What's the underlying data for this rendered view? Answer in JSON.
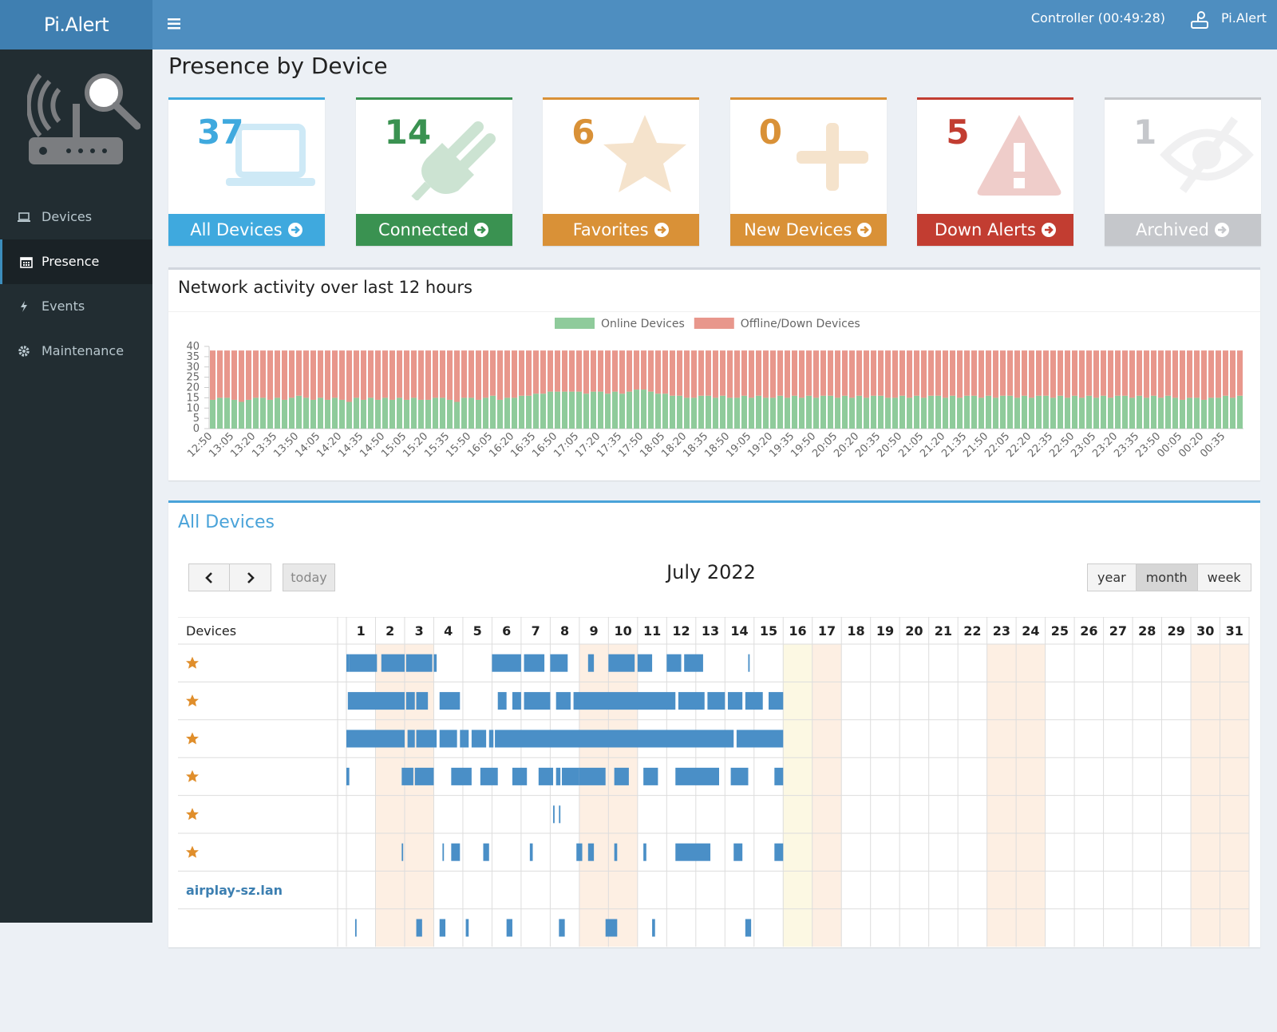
{
  "header": {
    "logo": "Pi.Alert",
    "status": "Controller (00:49:28)",
    "user": "Pi.Alert"
  },
  "sidebar": {
    "items": [
      "Devices",
      "Presence",
      "Events",
      "Maintenance"
    ],
    "active": 1
  },
  "page_title": "Presence by Device",
  "tiles": [
    {
      "count": 37,
      "label": "All Devices",
      "color": "#3fa9de"
    },
    {
      "count": 14,
      "label": "Connected",
      "color": "#3a9251"
    },
    {
      "count": 6,
      "label": "Favorites",
      "color": "#d99137"
    },
    {
      "count": 0,
      "label": "New Devices",
      "color": "#d99137"
    },
    {
      "count": 5,
      "label": "Down Alerts",
      "color": "#c23d31"
    },
    {
      "count": 1,
      "label": "Archived",
      "color": "#c5c7cb"
    }
  ],
  "chart_data": {
    "type": "stacked_bar",
    "title": "Network activity over last 12 hours",
    "categories": [
      "12:50",
      null,
      null,
      "13:05",
      null,
      null,
      "13:20",
      null,
      null,
      "13:35",
      null,
      null,
      "13:50",
      null,
      null,
      "14:05",
      null,
      null,
      "14:20",
      null,
      null,
      "14:35",
      null,
      null,
      "14:50",
      null,
      null,
      "15:05",
      null,
      null,
      "15:20",
      null,
      null,
      "15:35",
      null,
      null,
      "15:50",
      null,
      null,
      "16:05",
      null,
      null,
      "16:20",
      null,
      null,
      "16:35",
      null,
      null,
      "16:50",
      null,
      null,
      "17:05",
      null,
      null,
      "17:20",
      null,
      null,
      "17:35",
      null,
      null,
      "17:50",
      null,
      null,
      "18:05",
      null,
      null,
      "18:20",
      null,
      null,
      "18:35",
      null,
      null,
      "18:50",
      null,
      null,
      "19:05",
      null,
      null,
      "19:20",
      null,
      null,
      "19:35",
      null,
      null,
      "19:50",
      null,
      null,
      "20:05",
      null,
      null,
      "20:20",
      null,
      null,
      "20:35",
      null,
      null,
      "20:50",
      null,
      null,
      "21:05",
      null,
      null,
      "21:20",
      null,
      null,
      "21:35",
      null,
      null,
      "21:50",
      null,
      null,
      "22:05",
      null,
      null,
      "22:20",
      null,
      null,
      "22:35",
      null,
      null,
      "22:50",
      null,
      null,
      "23:05",
      null,
      null,
      "23:20",
      null,
      null,
      "23:35",
      null,
      null,
      "23:50",
      null,
      null,
      "00:05",
      null,
      null,
      "00:20",
      null,
      null,
      "00:35",
      null,
      null
    ],
    "series": [
      {
        "name": "Online Devices",
        "color": "#8fcb9b",
        "values": [
          14,
          15,
          15,
          14,
          13,
          14,
          15,
          15,
          14,
          15,
          14,
          15,
          16,
          15,
          14,
          15,
          14,
          15,
          14,
          13,
          15,
          14,
          15,
          14,
          15,
          14,
          15,
          14,
          15,
          14,
          14,
          15,
          15,
          14,
          13,
          15,
          15,
          14,
          15,
          16,
          14,
          15,
          15,
          16,
          16,
          17,
          17,
          18,
          18,
          18,
          18,
          18,
          17,
          18,
          18,
          17,
          18,
          17,
          18,
          19,
          19,
          18,
          17,
          17,
          16,
          16,
          15,
          15,
          16,
          16,
          15,
          16,
          15,
          15,
          16,
          15,
          16,
          15,
          15,
          16,
          15,
          16,
          15,
          16,
          15,
          16,
          16,
          15,
          16,
          15,
          16,
          15,
          16,
          16,
          15,
          15,
          16,
          15,
          16,
          15,
          16,
          16,
          15,
          16,
          15,
          16,
          16,
          15,
          16,
          15,
          16,
          16,
          15,
          16,
          15,
          16,
          16,
          15,
          16,
          15,
          16,
          15,
          16,
          15,
          16,
          15,
          16,
          16,
          15,
          16,
          15,
          16,
          15,
          16,
          15,
          14,
          15,
          15,
          14,
          15,
          15,
          16,
          15,
          16
        ]
      },
      {
        "name": "Offline/Down Devices",
        "color": "#e8978c",
        "values": [
          24,
          23,
          23,
          24,
          25,
          24,
          23,
          23,
          24,
          23,
          24,
          23,
          22,
          23,
          24,
          23,
          24,
          23,
          24,
          25,
          23,
          24,
          23,
          24,
          23,
          24,
          23,
          24,
          23,
          24,
          24,
          23,
          23,
          24,
          25,
          23,
          23,
          24,
          23,
          22,
          24,
          23,
          23,
          22,
          22,
          21,
          21,
          20,
          20,
          20,
          20,
          20,
          21,
          20,
          20,
          21,
          20,
          21,
          20,
          19,
          19,
          20,
          21,
          21,
          22,
          22,
          23,
          23,
          22,
          22,
          23,
          22,
          23,
          23,
          22,
          23,
          22,
          23,
          23,
          22,
          23,
          22,
          23,
          22,
          23,
          22,
          22,
          23,
          22,
          23,
          22,
          23,
          22,
          22,
          23,
          23,
          22,
          23,
          22,
          23,
          22,
          22,
          23,
          22,
          23,
          22,
          22,
          23,
          22,
          23,
          22,
          22,
          23,
          22,
          23,
          22,
          22,
          23,
          22,
          23,
          22,
          23,
          22,
          23,
          22,
          23,
          22,
          22,
          23,
          22,
          23,
          22,
          23,
          22,
          23,
          24,
          23,
          23,
          24,
          23,
          23,
          22,
          23,
          22
        ]
      }
    ],
    "ylim": [
      0,
      40
    ],
    "yticks": [
      0,
      5,
      10,
      15,
      20,
      25,
      30,
      35,
      40
    ],
    "legend": "top",
    "grid": false
  },
  "calendar": {
    "title": "All Devices",
    "month": "July 2022",
    "today_button": "today",
    "views": [
      "year",
      "month",
      "week"
    ],
    "active_view": 1,
    "devices_header": "Devices",
    "days": [
      1,
      2,
      3,
      4,
      5,
      6,
      7,
      8,
      9,
      10,
      11,
      12,
      13,
      14,
      15,
      16,
      17,
      18,
      19,
      20,
      21,
      22,
      23,
      24,
      25,
      26,
      27,
      28,
      29,
      30,
      31
    ],
    "rows": [
      {
        "favorite": true,
        "presence": [
          [
            1.0,
            1.1
          ],
          [
            1.1,
            2.05
          ],
          [
            2.2,
            3.0
          ],
          [
            3.05,
            3.95
          ],
          [
            4.0,
            4.1
          ],
          [
            6.0,
            7.0
          ],
          [
            7.1,
            7.8
          ],
          [
            8.0,
            8.6
          ],
          [
            9.3,
            9.5
          ],
          [
            10.0,
            10.9
          ],
          [
            11.0,
            11.5
          ],
          [
            12.0,
            12.5
          ],
          [
            12.6,
            13.25
          ],
          [
            14.8,
            14.85
          ]
        ]
      },
      {
        "favorite": true,
        "presence": [
          [
            1.05,
            3.0
          ],
          [
            3.05,
            3.35
          ],
          [
            3.4,
            3.8
          ],
          [
            4.2,
            4.9
          ],
          [
            6.2,
            6.5
          ],
          [
            6.7,
            7.0
          ],
          [
            7.1,
            8.0
          ],
          [
            8.2,
            8.7
          ],
          [
            8.8,
            12.3
          ],
          [
            12.4,
            13.3
          ],
          [
            13.4,
            14.0
          ],
          [
            14.1,
            14.6
          ],
          [
            14.7,
            15.3
          ],
          [
            15.5,
            16.0
          ]
        ]
      },
      {
        "favorite": true,
        "presence": [
          [
            1.0,
            3.0
          ],
          [
            3.1,
            3.35
          ],
          [
            3.4,
            4.1
          ],
          [
            4.2,
            4.8
          ],
          [
            4.9,
            5.2
          ],
          [
            5.3,
            5.8
          ],
          [
            5.9,
            6.05
          ],
          [
            6.1,
            14.3
          ],
          [
            14.4,
            16.0
          ]
        ]
      },
      {
        "favorite": true,
        "presence": [
          [
            1.0,
            1.1
          ],
          [
            2.9,
            3.3
          ],
          [
            3.35,
            4.0
          ],
          [
            4.6,
            5.3
          ],
          [
            5.6,
            6.2
          ],
          [
            6.7,
            7.2
          ],
          [
            7.6,
            8.1
          ],
          [
            8.2,
            8.35
          ],
          [
            8.4,
            9.0
          ],
          [
            9.0,
            9.9
          ],
          [
            10.2,
            10.7
          ],
          [
            11.2,
            11.7
          ],
          [
            12.3,
            13.8
          ],
          [
            14.2,
            14.8
          ],
          [
            15.7,
            16.0
          ]
        ]
      },
      {
        "favorite": true,
        "presence": [
          [
            8.1,
            8.15
          ],
          [
            8.3,
            8.35
          ]
        ]
      },
      {
        "favorite": true,
        "presence": [
          [
            2.9,
            2.95
          ],
          [
            4.3,
            4.35
          ],
          [
            4.6,
            4.9
          ],
          [
            5.7,
            5.9
          ],
          [
            7.3,
            7.4
          ],
          [
            8.9,
            9.1
          ],
          [
            9.3,
            9.5
          ],
          [
            10.2,
            10.3
          ],
          [
            11.2,
            11.3
          ],
          [
            12.3,
            13.5
          ],
          [
            14.3,
            14.6
          ],
          [
            15.7,
            16.0
          ]
        ]
      },
      {
        "name": "airplay-sz.lan",
        "favorite": false,
        "presence": []
      },
      {
        "favorite": false,
        "presence": [
          [
            1.3,
            1.35
          ],
          [
            3.4,
            3.6
          ],
          [
            4.2,
            4.4
          ],
          [
            5.1,
            5.2
          ],
          [
            6.5,
            6.7
          ],
          [
            8.3,
            8.5
          ],
          [
            9.9,
            10.3
          ],
          [
            11.5,
            11.6
          ],
          [
            14.7,
            14.9
          ]
        ]
      }
    ]
  }
}
